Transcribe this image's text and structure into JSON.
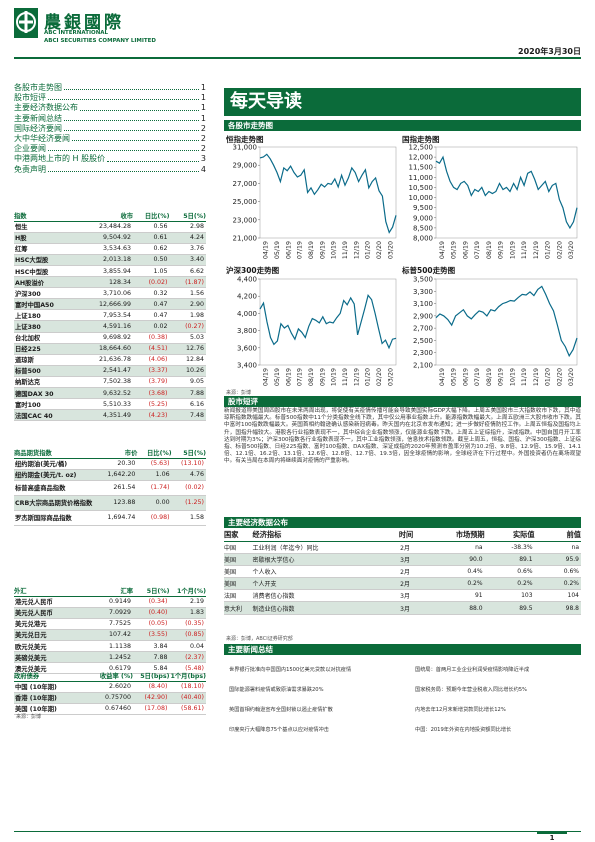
{
  "header": {
    "brand_cn": "農銀國際",
    "brand_en_1": "ABC INTERNATIONAL",
    "brand_en_2": "ABCI SECURITIES COMPANY LIMITED",
    "date": "2020年3月30日"
  },
  "toc": [
    {
      "label": "各股市走势图",
      "page": "1"
    },
    {
      "label": "股市短评",
      "page": "1"
    },
    {
      "label": "主要经济数据公布",
      "page": "1"
    },
    {
      "label": "主要新闻总结",
      "page": "1"
    },
    {
      "label": "国际经济要闻",
      "page": "2"
    },
    {
      "label": "大中华经济要闻",
      "page": "2"
    },
    {
      "label": "企业要闻",
      "page": "2"
    },
    {
      "label": "中港两地上市的 H 股股价",
      "page": "3"
    },
    {
      "label": "免责声明",
      "page": "4"
    }
  ],
  "title": "每天导读",
  "sections": {
    "charts": "各股市走势图",
    "commentary": "股市短评",
    "econ": "主要经济数据公布",
    "news": "主要新闻总结"
  },
  "index_table": {
    "headers": [
      "指数",
      "收市",
      "日比(%)",
      "5日(%)"
    ],
    "rows": [
      {
        "name": "恒生",
        "close": "23,484.28",
        "d1": "0.56",
        "d5": "2.98",
        "neg1": false,
        "neg5": false
      },
      {
        "name": "H股",
        "close": "9,504.92",
        "d1": "0.61",
        "d5": "4.24",
        "neg1": false,
        "neg5": false
      },
      {
        "name": "红筹",
        "close": "3,534.63",
        "d1": "0.62",
        "d5": "3.76",
        "neg1": false,
        "neg5": false
      },
      {
        "name": "HSC大型股",
        "close": "2,013.18",
        "d1": "0.50",
        "d5": "3.40",
        "neg1": false,
        "neg5": false
      },
      {
        "name": "HSC中型股",
        "close": "3,855.94",
        "d1": "1.05",
        "d5": "6.62",
        "neg1": false,
        "neg5": false
      },
      {
        "name": "AH股溢价",
        "close": "128.34",
        "d1": "(0.02)",
        "d5": "(1.87)",
        "neg1": true,
        "neg5": true
      },
      {
        "name": "沪深300",
        "close": "3,710.06",
        "d1": "0.32",
        "d5": "1.56",
        "neg1": false,
        "neg5": false
      },
      {
        "name": "富时中国A50",
        "close": "12,666.99",
        "d1": "0.47",
        "d5": "2.90",
        "neg1": false,
        "neg5": false
      },
      {
        "name": "上证180",
        "close": "7,953.54",
        "d1": "0.47",
        "d5": "1.98",
        "neg1": false,
        "neg5": false
      },
      {
        "name": "上证380",
        "close": "4,591.16",
        "d1": "0.02",
        "d5": "(0.27)",
        "neg1": false,
        "neg5": true
      },
      {
        "name": "台北加权",
        "close": "9,698.92",
        "d1": "(0.38)",
        "d5": "5.03",
        "neg1": true,
        "neg5": false
      },
      {
        "name": "日经225",
        "close": "18,664.60",
        "d1": "(4.51)",
        "d5": "12.76",
        "neg1": true,
        "neg5": false
      },
      {
        "name": "道琼斯",
        "close": "21,636.78",
        "d1": "(4.06)",
        "d5": "12.84",
        "neg1": true,
        "neg5": false
      },
      {
        "name": "标普500",
        "close": "2,541.47",
        "d1": "(3.37)",
        "d5": "10.26",
        "neg1": true,
        "neg5": false
      },
      {
        "name": "纳斯达克",
        "close": "7,502.38",
        "d1": "(3.79)",
        "d5": "9.05",
        "neg1": true,
        "neg5": false
      },
      {
        "name": "德国DAX 30",
        "close": "9,632.52",
        "d1": "(3.68)",
        "d5": "7.88",
        "neg1": true,
        "neg5": false
      },
      {
        "name": "富时100",
        "close": "5,510.33",
        "d1": "(5.25)",
        "d5": "6.16",
        "neg1": true,
        "neg5": false
      },
      {
        "name": "法国CAC 40",
        "close": "4,351.49",
        "d1": "(4.23)",
        "d5": "7.48",
        "neg1": true,
        "neg5": false
      }
    ]
  },
  "commodity_table": {
    "headers": [
      "商品期货指数",
      "市价",
      "日比(%)",
      "5日(%)"
    ],
    "rows": [
      {
        "name": "纽约期油(美元/桶)",
        "close": "20.30",
        "d1": "(5.63)",
        "d5": "(13.10)",
        "neg1": true,
        "neg5": true
      },
      {
        "name": "纽约期金(美元/t. oz)",
        "close": "1,642.20",
        "d1": "1.06",
        "d5": "4.76",
        "neg1": false,
        "neg5": false
      },
      {
        "name": "标普高盛商品指数",
        "close": "261.54",
        "d1": "(1.74)",
        "d5": "(0.02)",
        "neg1": true,
        "neg5": true
      },
      {
        "name": "CRB大宗商品期货价格指数",
        "close": "123.88",
        "d1": "0.00",
        "d5": "(1.25)",
        "neg1": false,
        "neg5": true
      },
      {
        "name": "罗杰斯国际商品指数",
        "close": "1,694.74",
        "d1": "(0.98)",
        "d5": "1.58",
        "neg1": true,
        "neg5": false
      }
    ]
  },
  "fx_table": {
    "headers": [
      "外汇",
      "汇率",
      "5日(%)",
      "1个月(%)"
    ],
    "rows": [
      {
        "name": "港元兑人民币",
        "close": "0.9149",
        "d1": "(0.34)",
        "d5": "2.19",
        "neg1": true,
        "neg5": false
      },
      {
        "name": "美元兑人民币",
        "close": "7.0929",
        "d1": "(0.40)",
        "d5": "1.83",
        "neg1": true,
        "neg5": false
      },
      {
        "name": "美元兑港元",
        "close": "7.7525",
        "d1": "(0.05)",
        "d5": "(0.35)",
        "neg1": true,
        "neg5": true
      },
      {
        "name": "美元兑日元",
        "close": "107.42",
        "d1": "(3.55)",
        "d5": "(0.85)",
        "neg1": true,
        "neg5": true
      },
      {
        "name": "欧元兑美元",
        "close": "1.1138",
        "d1": "3.84",
        "d5": "0.04",
        "neg1": false,
        "neg5": false
      },
      {
        "name": "英磅兑美元",
        "close": "1.2452",
        "d1": "7.88",
        "d5": "(2.37)",
        "neg1": false,
        "neg5": true
      },
      {
        "name": "澳元兑美元",
        "close": "0.6179",
        "d1": "5.84",
        "d5": "(5.48)",
        "neg1": false,
        "neg5": true
      }
    ]
  },
  "bond_table": {
    "headers": [
      "政府债券",
      "收益率 (%)",
      "5日(bps)",
      "1个月(bps)"
    ],
    "rows": [
      {
        "name": "中国 (10年期)",
        "close": "2.6020",
        "d1": "(8.40)",
        "d5": "(18.10)",
        "neg1": true,
        "neg5": true
      },
      {
        "name": "香港 (10年期)",
        "close": "0.75700",
        "d1": "(42.90)",
        "d5": "(40.40)",
        "neg1": true,
        "neg5": true
      },
      {
        "name": "美国 (10年期)",
        "close": "0.67460",
        "d1": "(17.08)",
        "d5": "(58.61)",
        "neg1": true,
        "neg5": true
      }
    ]
  },
  "sources": {
    "left_tables": "来源：彭博",
    "charts": "来源：彭博",
    "econ": "来源：彭博，ABCI证券研究部"
  },
  "commentary_text": "新闻报道称美国周四股市在未来两周出现，将促使有关疫情传播可能会导致美国实际GDP大幅下降。上周五美国股市三大指数收市下跌，其中道琼斯指数跌幅最大。标普500指数中11个分类指数全线下跌，其中仅公用事业指数上升。能源指数跌幅最大。上周五欧洲三大股市收市下跌。其中富时100指数跌幅最大。英国首相约翰逊确认感染新冠病毒。昨天国内在北京市发布通知；进一步做好疫情防控工作。上周五恒指及国指均上升，国指升幅较大。港股各行业指数表现不一，其中综合企业指数领涨，仅能源业指数下跌。上周五上证综指升，深成指跌。中国自国月开工率达到时期为3%；沪深300指数各行业指数表现不一，其中工业指数领涨，信息技术指数领跌。截至上周五，恒指、国指、沪深300指数、上证综指、标普500指数、日经225指数、富时100指数、DAX指数、深证成指的2020年预测市盈率分别为10.2倍、9.8倍、12.9倍、15.9倍、14.1倍、12.1倍、16.2倍、13.1倍、12.6倍、12.8倍、12.7倍、19.3倍，因全球疫情的影响，全球经济在下行过程中。外国投资者仍在离场观望中。有关当局在本周内将继续面对疫情的严重影响。",
  "econ_table": {
    "headers": [
      "国家",
      "经济指标",
      "时间",
      "市场预期",
      "实际值",
      "前值"
    ],
    "rows": [
      {
        "country": "中国",
        "indicator": "工业利润（年迄今）同比",
        "time": "2月",
        "forecast": "na",
        "actual": "-38.3%",
        "previous": "na"
      },
      {
        "country": "美国",
        "indicator": "密歇根大学信心",
        "time": "3月",
        "forecast": "90.0",
        "actual": "89.1",
        "previous": "95.9"
      },
      {
        "country": "美国",
        "indicator": "个人收入",
        "time": "2月",
        "forecast": "0.4%",
        "actual": "0.6%",
        "previous": "0.6%"
      },
      {
        "country": "美国",
        "indicator": "个人开支",
        "time": "2月",
        "forecast": "0.2%",
        "actual": "0.2%",
        "previous": "0.2%"
      },
      {
        "country": "法国",
        "indicator": "消费者信心指数",
        "time": "3月",
        "forecast": "91",
        "actual": "103",
        "previous": "104"
      },
      {
        "country": "意大利",
        "indicator": "制造业信心指数",
        "time": "3月",
        "forecast": "88.0",
        "actual": "89.5",
        "previous": "98.8"
      }
    ]
  },
  "news": [
    "世界银行批准向中国国内1500亿美元贷款以对抗疫情",
    "国统局：首两月工业企业利润受疫情影响降近半成",
    "国际能源署料疫情或致原油需求暴跌20%",
    "国家税务局：预期今年营业税收入同比增长约5%",
    "英国首相约翰逊宣布全国封锁以遏止疫情扩散",
    "内地去年12月末新增贷款同比增长12%",
    "印度央行大幅降息75个基点以应对疫情冲击",
    "中国：2019年外资在内地投资额同比增长"
  ],
  "charts": [
    {
      "name": "恒指走势图",
      "ylim": [
        21000,
        31000
      ],
      "ticks": [
        "21,000",
        "23,000",
        "25,000",
        "27,000",
        "29,000",
        "31,000"
      ],
      "tick_values": [
        21000,
        23000,
        25000,
        27000,
        29000,
        31000
      ],
      "xlabels": [
        "04/19",
        "05/19",
        "06/19",
        "07/19",
        "08/19",
        "09/19",
        "10/19",
        "11/19",
        "12/19",
        "01/20",
        "02/20",
        "03/20"
      ],
      "values": [
        29800,
        29900,
        30200,
        29700,
        29000,
        28200,
        27200,
        28700,
        28400,
        28900,
        28200,
        27700,
        27900,
        28500,
        26000,
        26500,
        25800,
        26300,
        26900,
        26600,
        27000,
        26900,
        27500,
        26600,
        27900,
        26800,
        27600,
        28700,
        28200,
        27200,
        27900,
        28500,
        26500,
        27200,
        27600,
        26200,
        25600,
        22800,
        21600,
        22200,
        23500
      ]
    },
    {
      "name": "国指走势图",
      "ylim": [
        8000,
        12500
      ],
      "ticks": [
        "8,000",
        "8,500",
        "9,000",
        "9,500",
        "10,000",
        "10,500",
        "11,000",
        "11,500",
        "12,000",
        "12,500"
      ],
      "tick_values": [
        8000,
        8500,
        9000,
        9500,
        10000,
        10500,
        11000,
        11500,
        12000,
        12500
      ],
      "xlabels": [
        "04/19",
        "05/19",
        "06/19",
        "07/19",
        "08/19",
        "09/19",
        "10/19",
        "11/19",
        "12/19",
        "01/20",
        "02/20",
        "03/20"
      ],
      "values": [
        11800,
        11700,
        12000,
        11300,
        10800,
        10500,
        10400,
        10700,
        10800,
        10600,
        10100,
        10400,
        10300,
        10500,
        10100,
        10300,
        10200,
        10300,
        10700,
        10400,
        10500,
        10300,
        10700,
        10400,
        11000,
        10600,
        11200,
        11300,
        10900,
        10400,
        10600,
        10800,
        10300,
        10600,
        10700,
        9900,
        9500,
        8800,
        8500,
        8800,
        9500
      ]
    },
    {
      "name": "沪深300走势图",
      "ylim": [
        3400,
        4400
      ],
      "ticks": [
        "3,400",
        "3,600",
        "3,800",
        "4,000",
        "4,200",
        "4,400"
      ],
      "tick_values": [
        3400,
        3600,
        3800,
        4000,
        4200,
        4400
      ],
      "xlabels": [
        "04/19",
        "05/19",
        "06/19",
        "07/19",
        "08/19",
        "09/19",
        "10/19",
        "11/19",
        "12/19",
        "01/20",
        "02/20",
        "03/20"
      ],
      "values": [
        4050,
        4120,
        3900,
        3720,
        3640,
        3680,
        3880,
        3830,
        3860,
        3770,
        3700,
        3820,
        3780,
        3720,
        3850,
        3940,
        3920,
        3890,
        3960,
        3880,
        3900,
        3890,
        3950,
        4000,
        4150,
        4100,
        4180,
        4110,
        3750,
        3900,
        4050,
        4210,
        4160,
        4000,
        3820,
        3650,
        3690,
        3600,
        3700,
        3710
      ]
    },
    {
      "name": "标普500走势图",
      "ylim": [
        2100,
        3500
      ],
      "ticks": [
        "2,100",
        "2,300",
        "2,500",
        "2,700",
        "2,900",
        "3,100",
        "3,300",
        "3,500"
      ],
      "tick_values": [
        2100,
        2300,
        2500,
        2700,
        2900,
        3100,
        3300,
        3500
      ],
      "xlabels": [
        "04/19",
        "05/19",
        "06/19",
        "07/19",
        "08/19",
        "09/19",
        "10/19",
        "11/19",
        "12/19",
        "01/20",
        "02/20",
        "03/20"
      ],
      "values": [
        2870,
        2930,
        2900,
        2840,
        2750,
        2900,
        2950,
        3000,
        2900,
        2850,
        2920,
        2980,
        2960,
        2900,
        3000,
        2980,
        3050,
        3100,
        3120,
        3150,
        3140,
        3200,
        3250,
        3240,
        3290,
        3230,
        3330,
        3380,
        3250,
        3100,
        2980,
        2750,
        2500,
        2400,
        2250,
        2350,
        2540
      ]
    }
  ],
  "page_number": "1"
}
